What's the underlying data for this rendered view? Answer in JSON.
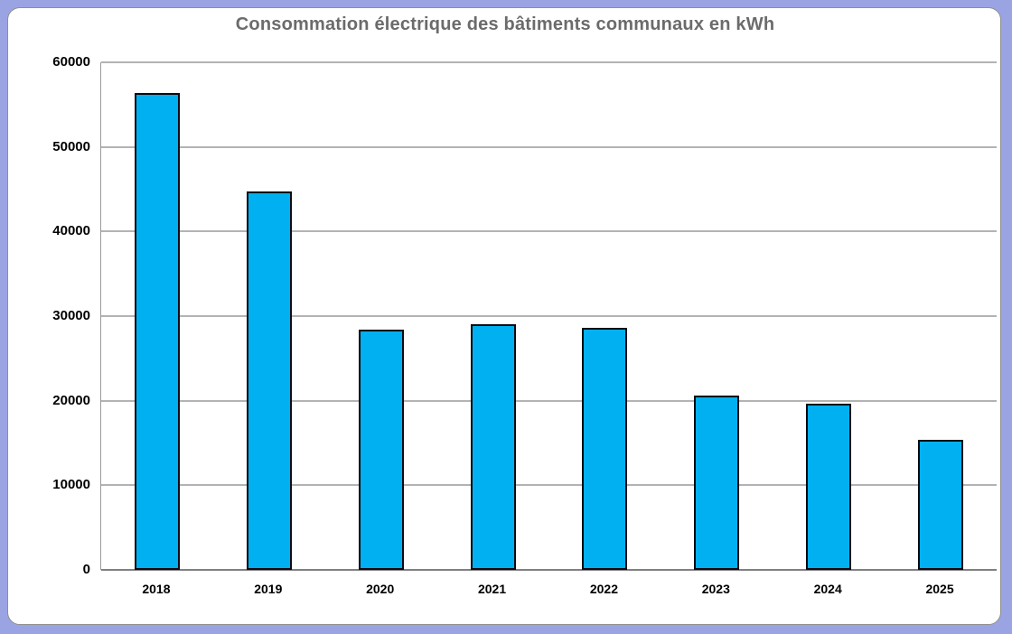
{
  "chart_data": {
    "type": "bar",
    "title": "Consommation électrique des bâtiments communaux en kWh",
    "categories": [
      "2018",
      "2019",
      "2020",
      "2021",
      "2022",
      "2023",
      "2024",
      "2025"
    ],
    "values": [
      56400,
      44700,
      28400,
      29000,
      28600,
      20600,
      19600,
      15400
    ],
    "xlabel": "",
    "ylabel": "",
    "unit": "kWh",
    "ylim": [
      0,
      60000
    ],
    "yticks": [
      0,
      10000,
      20000,
      30000,
      40000,
      50000,
      60000
    ],
    "grid": true,
    "legend": "none",
    "bar_color": "#00B0F0",
    "bar_border_color": "#0a0a12"
  },
  "colors": {
    "frame": "#9ba4e2",
    "chart_background": "#ffffff",
    "chart_outline": "#8f8f8f",
    "title_text": "#6b6b6b",
    "gridline": "#b3b3b3",
    "axis_line": "#808080",
    "tick_label": "#000000"
  }
}
